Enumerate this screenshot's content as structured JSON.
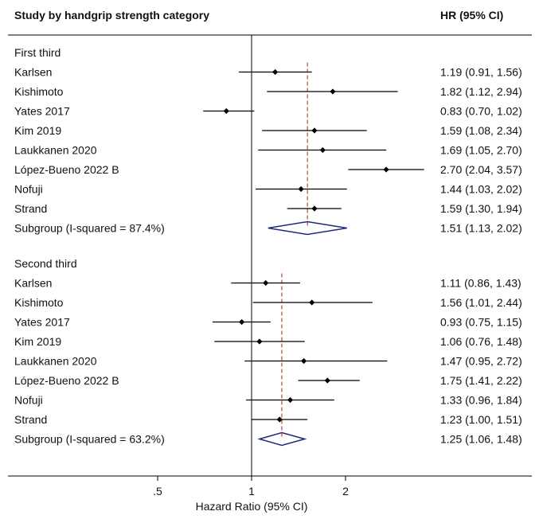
{
  "chart_data": {
    "type": "forest",
    "header_left": "Study by handgrip strength category",
    "header_right": "HR (95% CI)",
    "xlabel": "Hazard Ratio (95% CI)",
    "x_scale": "log",
    "x_ticks": [
      {
        "value": 0.5,
        "label": ".5"
      },
      {
        "value": 1,
        "label": "1"
      },
      {
        "value": 2,
        "label": "2"
      }
    ],
    "reference_line": 1,
    "groups": [
      {
        "name": "First third",
        "studies": [
          {
            "label": "Karlsen",
            "hr": 1.19,
            "lo": 0.91,
            "hi": 1.56,
            "text": "1.19 (0.91, 1.56)"
          },
          {
            "label": "Kishimoto",
            "hr": 1.82,
            "lo": 1.12,
            "hi": 2.94,
            "text": "1.82 (1.12, 2.94)"
          },
          {
            "label": "Yates 2017",
            "hr": 0.83,
            "lo": 0.7,
            "hi": 1.02,
            "text": "0.83 (0.70, 1.02)"
          },
          {
            "label": "Kim 2019",
            "hr": 1.59,
            "lo": 1.08,
            "hi": 2.34,
            "text": "1.59 (1.08, 2.34)"
          },
          {
            "label": "Laukkanen 2020",
            "hr": 1.69,
            "lo": 1.05,
            "hi": 2.7,
            "text": "1.69 (1.05, 2.70)"
          },
          {
            "label": "López-Bueno 2022 B",
            "hr": 2.7,
            "lo": 2.04,
            "hi": 3.57,
            "text": "2.70 (2.04, 3.57)"
          },
          {
            "label": "Nofuji",
            "hr": 1.44,
            "lo": 1.03,
            "hi": 2.02,
            "text": "1.44 (1.03, 2.02)"
          },
          {
            "label": "Strand",
            "hr": 1.59,
            "lo": 1.3,
            "hi": 1.94,
            "text": "1.59 (1.30, 1.94)"
          }
        ],
        "subgroup": {
          "label": "Subgroup (I-squared = 87.4%)",
          "hr": 1.51,
          "lo": 1.13,
          "hi": 2.02,
          "text": "1.51 (1.13, 2.02)"
        }
      },
      {
        "name": "Second third",
        "studies": [
          {
            "label": "Karlsen",
            "hr": 1.11,
            "lo": 0.86,
            "hi": 1.43,
            "text": "1.11 (0.86, 1.43)"
          },
          {
            "label": "Kishimoto",
            "hr": 1.56,
            "lo": 1.01,
            "hi": 2.44,
            "text": "1.56 (1.01, 2.44)"
          },
          {
            "label": "Yates 2017",
            "hr": 0.93,
            "lo": 0.75,
            "hi": 1.15,
            "text": "0.93 (0.75, 1.15)"
          },
          {
            "label": "Kim 2019",
            "hr": 1.06,
            "lo": 0.76,
            "hi": 1.48,
            "text": "1.06 (0.76, 1.48)"
          },
          {
            "label": "Laukkanen 2020",
            "hr": 1.47,
            "lo": 0.95,
            "hi": 2.72,
            "text": "1.47 (0.95, 2.72)"
          },
          {
            "label": "López-Bueno 2022 B",
            "hr": 1.75,
            "lo": 1.41,
            "hi": 2.22,
            "text": "1.75 (1.41, 2.22)"
          },
          {
            "label": "Nofuji",
            "hr": 1.33,
            "lo": 0.96,
            "hi": 1.84,
            "text": "1.33 (0.96, 1.84)"
          },
          {
            "label": "Strand",
            "hr": 1.23,
            "lo": 1.0,
            "hi": 1.51,
            "text": "1.23 (1.00, 1.51)"
          }
        ],
        "subgroup": {
          "label": "Subgroup (I-squared = 63.2%)",
          "hr": 1.25,
          "lo": 1.06,
          "hi": 1.48,
          "text": "1.25 (1.06, 1.48)"
        }
      }
    ],
    "colors": {
      "ci_line": "#000000",
      "point": "#000000",
      "diamond": "#1f2a78",
      "summary_line": "#b5483a",
      "axis": "#000000"
    }
  }
}
